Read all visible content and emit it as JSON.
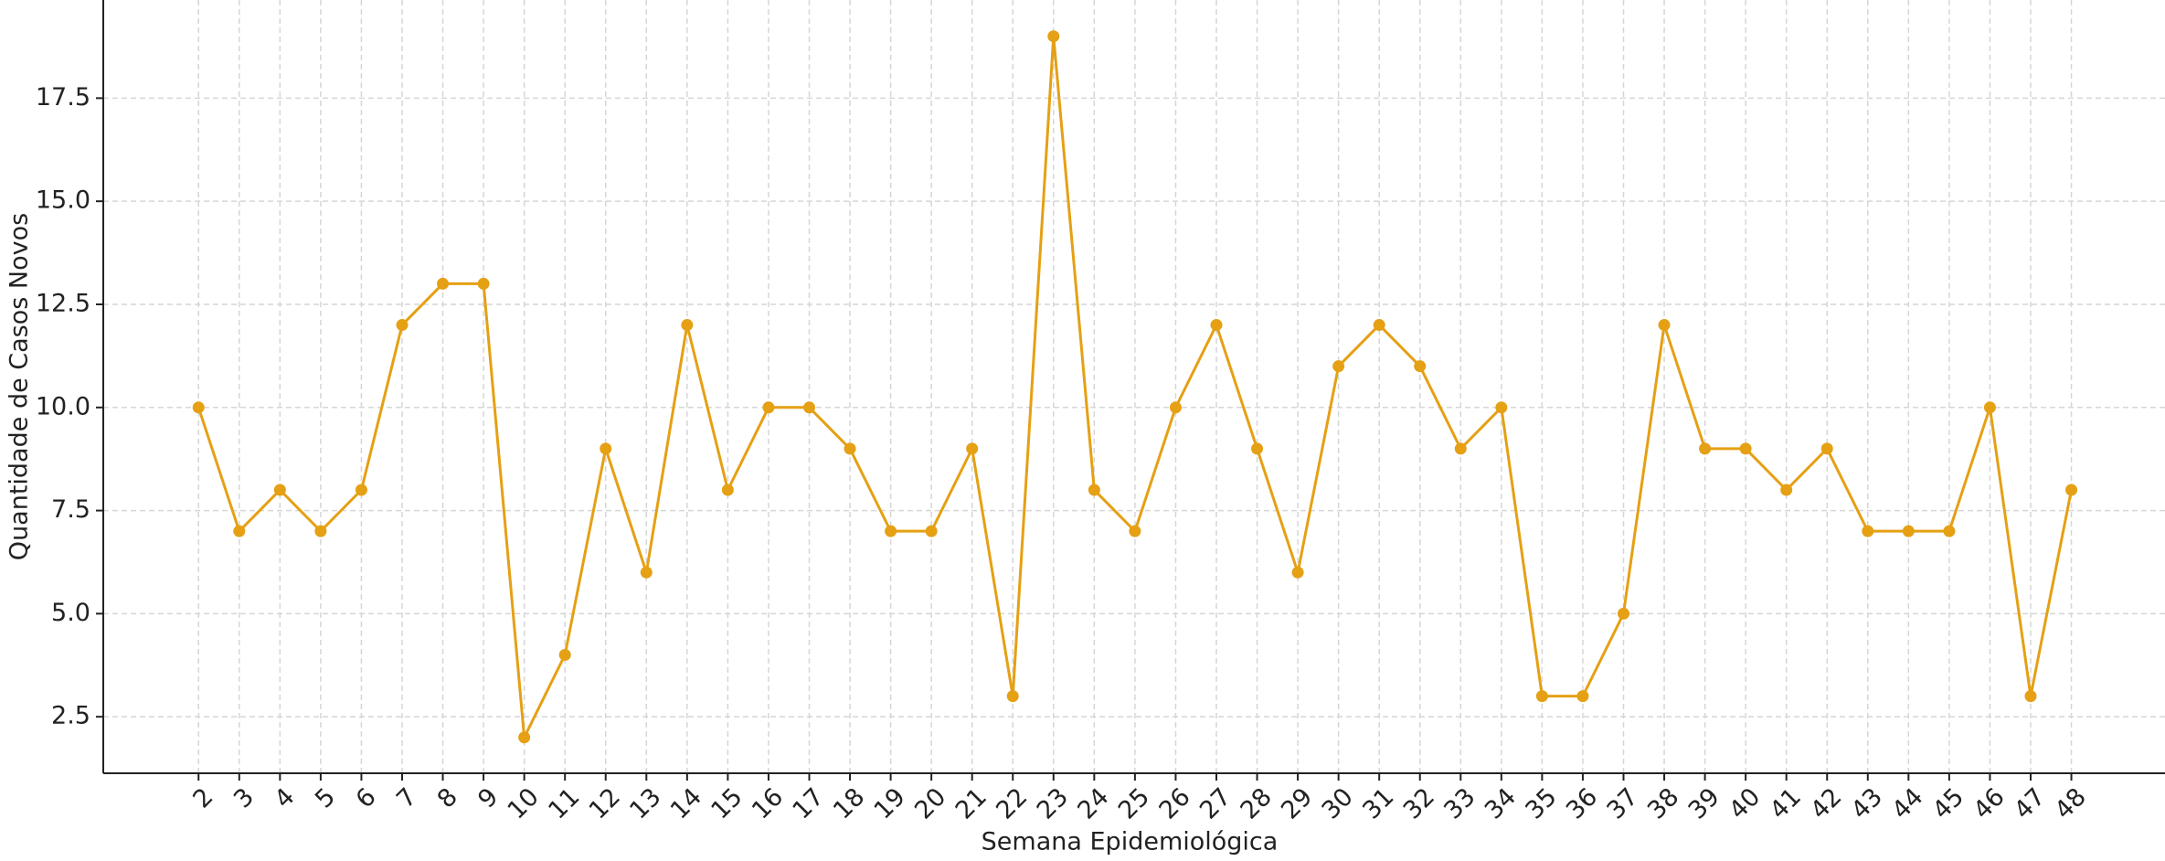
{
  "chart_data": {
    "type": "line",
    "x_label": "Semana Epidemiológica",
    "y_label": "Quantidade de Casos Novos",
    "x": [
      2,
      3,
      4,
      5,
      6,
      7,
      8,
      9,
      10,
      11,
      12,
      13,
      14,
      15,
      16,
      17,
      18,
      19,
      20,
      21,
      22,
      23,
      24,
      25,
      26,
      27,
      28,
      29,
      30,
      31,
      32,
      33,
      34,
      35,
      36,
      37,
      38,
      39,
      40,
      41,
      42,
      43,
      44,
      45,
      46,
      47,
      48
    ],
    "values": [
      10,
      7,
      8,
      7,
      8,
      12,
      13,
      13,
      2,
      4,
      9,
      6,
      12,
      8,
      10,
      10,
      9,
      7,
      7,
      9,
      3,
      19,
      8,
      7,
      10,
      12,
      9,
      6,
      11,
      12,
      11,
      9,
      10,
      3,
      3,
      5,
      12,
      9,
      9,
      8,
      9,
      7,
      7,
      7,
      10,
      3,
      8
    ],
    "color": "#e5a014",
    "xlim": [
      -0.34,
      50.3
    ],
    "xticks": [
      2,
      3,
      4,
      5,
      6,
      7,
      8,
      9,
      10,
      11,
      12,
      13,
      14,
      15,
      16,
      17,
      18,
      19,
      20,
      21,
      22,
      23,
      24,
      25,
      26,
      27,
      28,
      29,
      30,
      31,
      32,
      33,
      34,
      35,
      36,
      37,
      38,
      39,
      40,
      41,
      42,
      43,
      44,
      45,
      46,
      47,
      48
    ],
    "ylim": [
      1.13,
      19.88
    ],
    "yticks": [
      2.5,
      {
        "value": 5,
        "label": "5.0"
      },
      7.5,
      {
        "value": 10,
        "label": "10.0"
      },
      12.5,
      {
        "value": 15,
        "label": "15.0"
      },
      17.5
    ],
    "grid": true
  }
}
